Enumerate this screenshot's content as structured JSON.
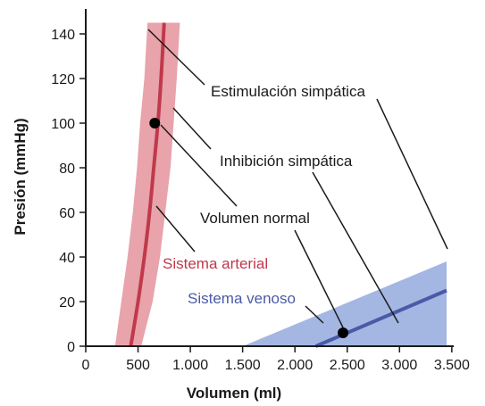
{
  "chart_data": {
    "type": "line",
    "xlabel": "Volumen (ml)",
    "ylabel": "Presión (mmHg)",
    "xlim": [
      0,
      3500
    ],
    "ylim": [
      0,
      145
    ],
    "x_ticks": [
      0,
      500,
      1000,
      1500,
      2000,
      2500,
      3000,
      3500
    ],
    "x_tick_labels": [
      "0",
      "500",
      "1.000",
      "1.500",
      "2.000",
      "2.500",
      "3.000",
      "3.500"
    ],
    "y_ticks": [
      0,
      20,
      40,
      60,
      80,
      100,
      120,
      140
    ],
    "y_tick_labels": [
      "0",
      "20",
      "40",
      "60",
      "80",
      "100",
      "120",
      "140"
    ],
    "grid": false,
    "series": [
      {
        "name": "Sistema arterial",
        "color": "#c0394b",
        "band_color": "#e8a3ab",
        "center": [
          [
            430,
            0
          ],
          [
            500,
            20
          ],
          [
            560,
            40
          ],
          [
            610,
            60
          ],
          [
            650,
            80
          ],
          [
            690,
            100
          ],
          [
            720,
            120
          ],
          [
            750,
            145
          ]
        ],
        "band_left": [
          [
            280,
            0
          ],
          [
            340,
            20
          ],
          [
            400,
            40
          ],
          [
            450,
            60
          ],
          [
            490,
            80
          ],
          [
            520,
            100
          ],
          [
            560,
            120
          ],
          [
            590,
            145
          ]
        ],
        "band_right": [
          [
            530,
            0
          ],
          [
            640,
            20
          ],
          [
            710,
            40
          ],
          [
            760,
            60
          ],
          [
            810,
            80
          ],
          [
            840,
            100
          ],
          [
            870,
            120
          ],
          [
            900,
            145
          ]
        ]
      },
      {
        "name": "Sistema venoso",
        "color": "#4a5aa8",
        "band_color": "#a4b7e3",
        "center": [
          [
            2200,
            0
          ],
          [
            3450,
            25
          ]
        ],
        "band_lower": [
          [
            1500,
            0
          ],
          [
            3450,
            0
          ]
        ],
        "band_upper": [
          [
            1500,
            0
          ],
          [
            3450,
            38
          ]
        ]
      }
    ],
    "normal_points": [
      {
        "x": 660,
        "y": 100
      },
      {
        "x": 2460,
        "y": 6
      }
    ],
    "annotations": [
      {
        "text": "Estimulación simpática"
      },
      {
        "text": "Inhibición simpática"
      },
      {
        "text": "Volumen normal"
      }
    ]
  }
}
